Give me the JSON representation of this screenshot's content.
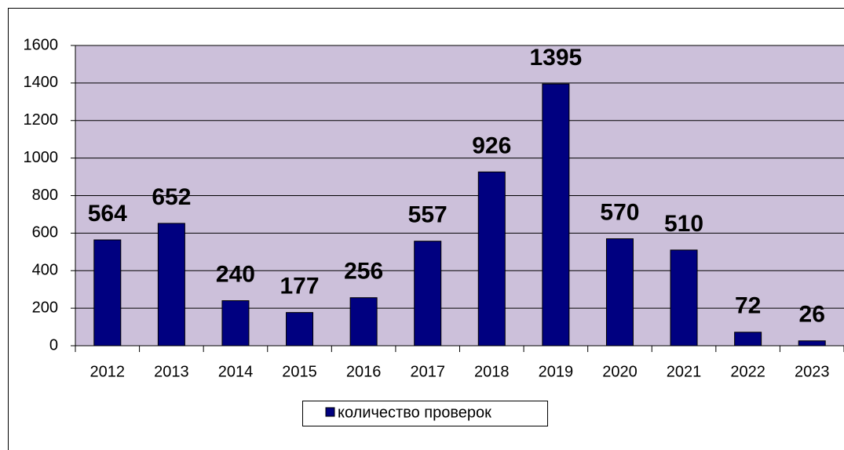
{
  "chart_data": {
    "type": "bar",
    "categories": [
      "2012",
      "2013",
      "2014",
      "2015",
      "2016",
      "2017",
      "2018",
      "2019",
      "2020",
      "2021",
      "2022",
      "2023"
    ],
    "series": [
      {
        "name": "количество проверок",
        "color": "#000080",
        "values": [
          564,
          652,
          240,
          177,
          256,
          557,
          926,
          1395,
          570,
          510,
          72,
          26
        ]
      }
    ],
    "ylim": [
      0,
      1600
    ],
    "yticks": [
      0,
      200,
      400,
      600,
      800,
      1000,
      1200,
      1400,
      1600
    ],
    "grid": true,
    "plot_background": "#ccc0da",
    "legend": "bottom"
  }
}
